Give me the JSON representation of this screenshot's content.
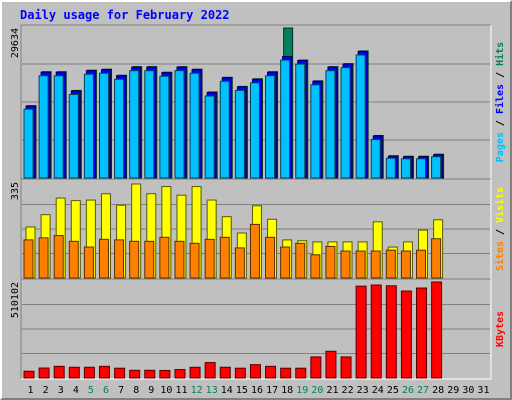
{
  "chart_data": {
    "type": "bar",
    "title": "Daily usage for February 2022",
    "x": [
      "1",
      "2",
      "3",
      "4",
      "5",
      "6",
      "7",
      "8",
      "9",
      "10",
      "11",
      "12",
      "13",
      "14",
      "15",
      "16",
      "17",
      "18",
      "19",
      "20",
      "21",
      "22",
      "23",
      "24",
      "25",
      "26",
      "27",
      "28",
      "29",
      "30",
      "31"
    ],
    "weekend_days": [
      "5",
      "6",
      "12",
      "13",
      "19",
      "20",
      "26",
      "27"
    ],
    "colors": {
      "title": "#0000ff",
      "hits": "#00805c",
      "files": "#0000ff",
      "pages": "#00c0ff",
      "visits": "#ffff00",
      "sites": "#ff8000",
      "kbytes": "#ff0000",
      "weekday_label": "#000000",
      "weekend_label": "#00805c",
      "background": "#c0c0c0"
    },
    "panels": [
      {
        "id": "hits-files-pages",
        "ymax_label": "29634",
        "ymax": 29634,
        "legend": [
          {
            "key": "hits",
            "label": "Hits"
          },
          {
            "key": "files",
            "label": "Files"
          },
          {
            "key": "pages",
            "label": "Pages"
          }
        ],
        "legend_separator": "/",
        "series": [
          {
            "key": "hits",
            "values": [
              14300,
              21000,
              21000,
              17300,
              21300,
              21500,
              20300,
              22000,
              22000,
              20900,
              22000,
              21500,
              17000,
              19900,
              18100,
              19600,
              21000,
              29634,
              23300,
              19200,
              22000,
              22600,
              25100,
              8400,
              4400,
              4300,
              4300,
              4700,
              0,
              0,
              0
            ]
          },
          {
            "key": "files",
            "values": [
              14200,
              20900,
              20900,
              17200,
              21200,
              21400,
              20200,
              21900,
              21900,
              20800,
              21900,
              21400,
              16900,
              19800,
              18000,
              19500,
              20900,
              24000,
              23200,
              19100,
              21900,
              22500,
              25000,
              8300,
              4300,
              4200,
              4200,
              4600,
              0,
              0,
              0
            ]
          },
          {
            "key": "pages",
            "values": [
              13600,
              20200,
              20200,
              16500,
              20500,
              20700,
              19500,
              21200,
              21200,
              20100,
              21200,
              20700,
              16200,
              19100,
              17300,
              18800,
              20200,
              23300,
              22500,
              18400,
              21200,
              21800,
              24300,
              7600,
              3900,
              3800,
              3800,
              4200,
              0,
              0,
              0
            ]
          }
        ]
      },
      {
        "id": "visits-sites",
        "ymax_label": "335",
        "ymax": 335,
        "legend": [
          {
            "key": "visits",
            "label": "Visits"
          },
          {
            "key": "sites",
            "label": "Sites"
          }
        ],
        "legend_separator": "/",
        "series": [
          {
            "key": "visits",
            "values": [
              178,
              221,
              279,
              270,
              272,
              294,
              254,
              328,
              294,
              319,
              289,
              319,
              272,
              214,
              157,
              252,
              205,
              133,
              130,
              126,
              126,
              126,
              126,
              196,
              108,
              126,
              167,
              203,
              0,
              0,
              0
            ]
          },
          {
            "key": "sites",
            "values": [
              133,
              140,
              148,
              128,
              108,
              135,
              133,
              128,
              128,
              142,
              128,
              121,
              135,
              142,
              105,
              187,
              142,
              108,
              121,
              81,
              110,
              94,
              94,
              94,
              97,
              94,
              97,
              137,
              0,
              0,
              0
            ]
          }
        ]
      },
      {
        "id": "kbytes",
        "ymax_label": "510102",
        "ymax": 510102,
        "legend": [
          {
            "key": "kbytes",
            "label": "KBytes"
          }
        ],
        "legend_separator": "",
        "series": [
          {
            "key": "kbytes",
            "values": [
              36000,
              53000,
              62000,
              57000,
              57000,
              62000,
              52000,
              41000,
              41000,
              40000,
              45000,
              57000,
              82000,
              57000,
              52000,
              71000,
              62000,
              52000,
              52000,
              112000,
              142000,
              112000,
              488000,
              494000,
              490000,
              462000,
              478000,
              510102,
              0,
              0,
              0
            ]
          }
        ]
      }
    ]
  }
}
